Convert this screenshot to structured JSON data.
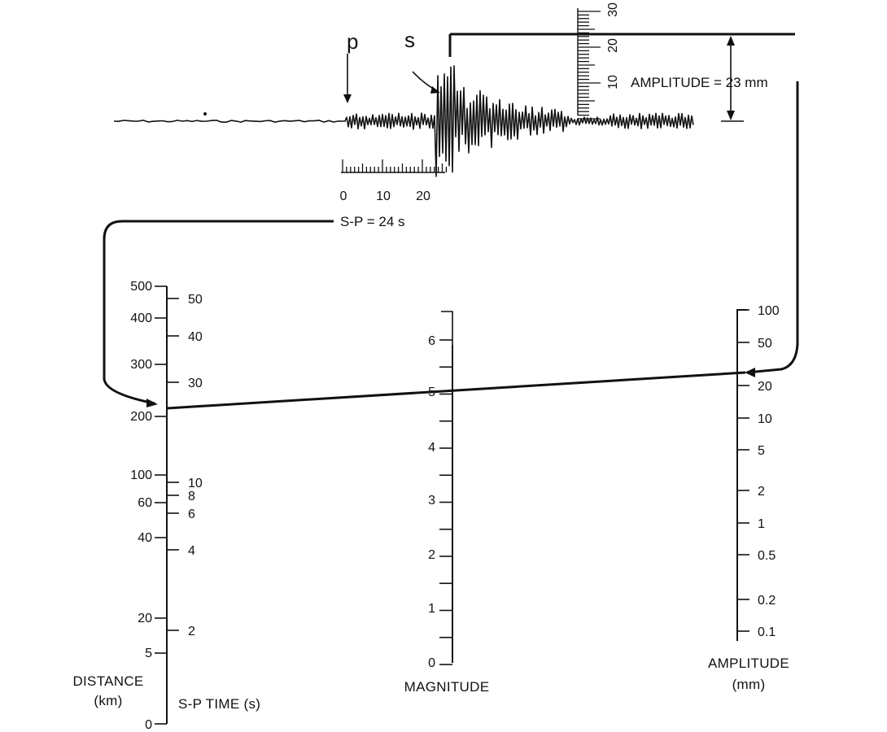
{
  "seismogram": {
    "p_label": "p",
    "s_label": "s",
    "time_scale": {
      "ticks": [
        "0",
        "10",
        "20"
      ]
    },
    "amplitude_scale": {
      "ticks": [
        "10",
        "20",
        "30"
      ]
    },
    "amplitude_annotation": "AMPLITUDE = 23 mm",
    "sp_annotation": "S-P = 24 s"
  },
  "nomogram": {
    "distance": {
      "title_line1": "DISTANCE",
      "title_line2": "(km)",
      "ticks": [
        "500",
        "400",
        "300",
        "200",
        "100",
        "60",
        "40",
        "20",
        "5",
        "0"
      ]
    },
    "sp_time": {
      "title": "S-P TIME (s)",
      "ticks": [
        "50",
        "40",
        "30",
        "10",
        "8",
        "6",
        "4",
        "2"
      ]
    },
    "magnitude": {
      "title": "MAGNITUDE",
      "ticks": [
        "6",
        "5",
        "4",
        "3",
        "2",
        "1",
        "0"
      ]
    },
    "amplitude": {
      "title_line1": "AMPLITUDE",
      "title_line2": "(mm)",
      "ticks": [
        "100",
        "50",
        "20",
        "10",
        "5",
        "2",
        "1",
        "0.5",
        "0.2",
        "0.1"
      ]
    }
  },
  "reading": {
    "sp_time_s": 24,
    "amplitude_mm": 23,
    "magnitude": 5,
    "distance_km": 210
  }
}
